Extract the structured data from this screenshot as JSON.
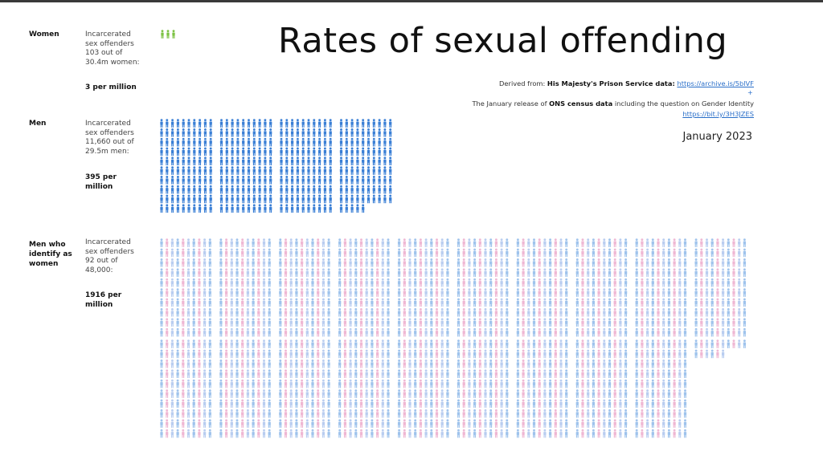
{
  "title": "Rates of sexual offending",
  "sources": {
    "line1_prefix": "Derived from: ",
    "line1_bold": "His Majesty's Prison Service data:",
    "line1_link": "https://archive.is/5blVF",
    "plus": "+",
    "line2_prefix": "The January release of ",
    "line2_bold": "ONS census data",
    "line2_suffix": " including the question on Gender Identity",
    "line2_link": "https://bit.ly/3H3JZES"
  },
  "date": "January 2023",
  "groups": [
    {
      "category": "Women",
      "desc_lines": [
        "Incarcerated",
        "sex offenders",
        "103 out of",
        "30.4m women:"
      ],
      "rate_lines": [
        "3 per million"
      ]
    },
    {
      "category": "Men",
      "desc_lines": [
        "Incarcerated",
        "sex offenders",
        "11,660 out of",
        "29.5m men:"
      ],
      "rate_lines": [
        "395 per",
        "million"
      ]
    },
    {
      "category_lines": [
        "Men who",
        "identify as",
        "women"
      ],
      "desc_lines": [
        "Incarcerated",
        "sex offenders",
        "92 out of",
        "48,000:"
      ],
      "rate_lines": [
        "1916 per",
        "million"
      ]
    }
  ],
  "chart_data": {
    "type": "pictogram",
    "unit": "one figure = one offender per 1,000,000",
    "series": [
      {
        "name": "Women",
        "value": 3,
        "color": "#7cc243"
      },
      {
        "name": "Men",
        "value": 395,
        "color": "#3a7fd5"
      },
      {
        "name": "Men who identify as women",
        "value": 1916,
        "colors": [
          "#9fc3ec",
          "#efb7d3",
          "#b9cdf0"
        ]
      }
    ],
    "block_size": 100
  }
}
